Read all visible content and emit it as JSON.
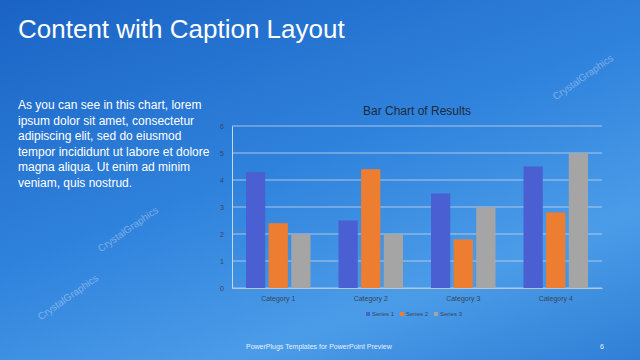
{
  "slide": {
    "title": "Content with Caption Layout",
    "caption": "As you can see in this chart, lorem ipsum dolor sit amet, consectetur adipiscing elit, sed do eiusmod tempor incididunt ut labore et dolore magna aliqua. Ut enim ad minim veniam, quis nostrud.",
    "footer": "PowerPlugs Templates for PowerPoint Preview",
    "page_number": "6",
    "watermark": "CrystalGraphics"
  },
  "chart_data": {
    "type": "bar",
    "title": "Bar Chart of Results",
    "categories": [
      "Category 1",
      "Category 2",
      "Category 3",
      "Category 4"
    ],
    "series": [
      {
        "name": "Series 1",
        "color": "#4a5fd1",
        "values": [
          4.3,
          2.5,
          3.5,
          4.5
        ]
      },
      {
        "name": "Series 2",
        "color": "#ed7d31",
        "values": [
          2.4,
          4.4,
          1.8,
          2.8
        ]
      },
      {
        "name": "Series 3",
        "color": "#a5a5a5",
        "values": [
          2,
          2,
          3,
          5
        ]
      }
    ],
    "ylim": [
      0,
      6
    ],
    "yticks": [
      0,
      1,
      2,
      3,
      4,
      5,
      6
    ],
    "grid": true,
    "legend": "bottom"
  }
}
